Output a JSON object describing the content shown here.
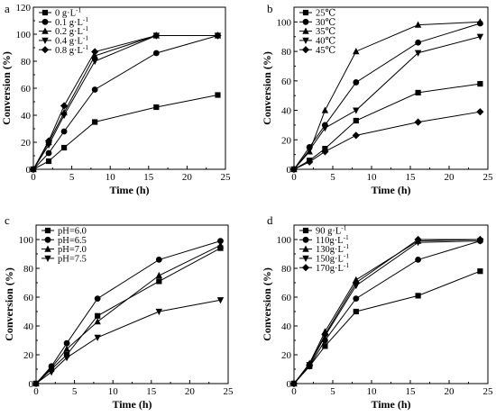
{
  "chart_data": [
    {
      "panel": "a",
      "type": "line",
      "xlabel": "Time (h)",
      "ylabel": "Conversion (%)",
      "xlim": [
        0,
        25
      ],
      "ylim": [
        0,
        120
      ],
      "xticks": [
        0,
        5,
        10,
        15,
        20,
        25
      ],
      "yticks": [
        0,
        20,
        40,
        60,
        80,
        100,
        120
      ],
      "x": [
        0,
        2,
        4,
        8,
        16,
        24
      ],
      "legend_position": "top-left",
      "series": [
        {
          "name": "0 g·L⁻¹",
          "marker": "square",
          "values": [
            0,
            6,
            16,
            35,
            46,
            55
          ]
        },
        {
          "name": "0.1 g·L⁻¹",
          "marker": "circle",
          "values": [
            0,
            12,
            28,
            59,
            86,
            99
          ]
        },
        {
          "name": "0.2 g·L⁻¹",
          "marker": "triangle-up",
          "values": [
            0,
            20,
            42,
            84,
            99,
            99
          ]
        },
        {
          "name": "0.4 g·L⁻¹",
          "marker": "triangle-down",
          "values": [
            0,
            18,
            40,
            80,
            99,
            99
          ]
        },
        {
          "name": "0.8 g·L⁻¹",
          "marker": "diamond",
          "values": [
            0,
            21,
            47,
            87,
            99,
            99
          ]
        }
      ]
    },
    {
      "panel": "b",
      "type": "line",
      "xlabel": "Time (h)",
      "ylabel": "Conversion (%)",
      "xlim": [
        0,
        25
      ],
      "ylim": [
        0,
        110
      ],
      "xticks": [
        0,
        5,
        10,
        15,
        20,
        25
      ],
      "yticks": [
        0,
        20,
        40,
        60,
        80,
        100
      ],
      "x": [
        0,
        2,
        4,
        8,
        16,
        24
      ],
      "legend_position": "top-left",
      "series": [
        {
          "name": "25℃",
          "marker": "square",
          "values": [
            0,
            6,
            14,
            33,
            52,
            58
          ]
        },
        {
          "name": "30℃",
          "marker": "circle",
          "values": [
            0,
            15,
            30,
            59,
            86,
            99
          ]
        },
        {
          "name": "35℃",
          "marker": "triangle-up",
          "values": [
            0,
            12,
            40,
            80,
            98,
            100
          ]
        },
        {
          "name": "40℃",
          "marker": "triangle-down",
          "values": [
            0,
            13,
            28,
            40,
            79,
            90
          ]
        },
        {
          "name": "45℃",
          "marker": "diamond",
          "values": [
            0,
            5,
            12,
            23,
            32,
            39
          ]
        }
      ]
    },
    {
      "panel": "c",
      "type": "line",
      "xlabel": "Time (h)",
      "ylabel": "Conversion (%)",
      "xlim": [
        0,
        25
      ],
      "ylim": [
        0,
        110
      ],
      "xticks": [
        0,
        5,
        10,
        15,
        20,
        25
      ],
      "yticks": [
        0,
        20,
        40,
        60,
        80,
        100
      ],
      "x": [
        0,
        2,
        4,
        8,
        16,
        24
      ],
      "legend_position": "top-left",
      "series": [
        {
          "name": "pH=6.0",
          "marker": "square",
          "values": [
            0,
            10,
            20,
            47,
            71,
            94
          ]
        },
        {
          "name": "pH=6.5",
          "marker": "circle",
          "values": [
            0,
            12,
            28,
            59,
            86,
            99
          ]
        },
        {
          "name": "pH=7.0",
          "marker": "triangle-up",
          "values": [
            0,
            11,
            24,
            43,
            75,
            96
          ]
        },
        {
          "name": "pH=7.5",
          "marker": "triangle-down",
          "values": [
            0,
            8,
            18,
            32,
            50,
            58
          ]
        }
      ]
    },
    {
      "panel": "d",
      "type": "line",
      "xlabel": "Time (h)",
      "ylabel": "Conversion (%)",
      "xlim": [
        0,
        25
      ],
      "ylim": [
        0,
        110
      ],
      "xticks": [
        0,
        5,
        10,
        15,
        20,
        25
      ],
      "yticks": [
        0,
        20,
        40,
        60,
        80,
        100
      ],
      "x": [
        0,
        2,
        4,
        8,
        16,
        24
      ],
      "legend_position": "top-left",
      "series": [
        {
          "name": "90 g·L⁻¹",
          "marker": "square",
          "values": [
            0,
            12,
            26,
            50,
            61,
            78
          ]
        },
        {
          "name": "110g·L⁻¹",
          "marker": "circle",
          "values": [
            0,
            12,
            30,
            59,
            86,
            99
          ]
        },
        {
          "name": "130g·L⁻¹",
          "marker": "triangle-up",
          "values": [
            0,
            14,
            36,
            72,
            99,
            100
          ]
        },
        {
          "name": "150g·L⁻¹",
          "marker": "triangle-down",
          "values": [
            0,
            13,
            33,
            68,
            98,
            99
          ]
        },
        {
          "name": "170g·L⁻¹",
          "marker": "diamond",
          "values": [
            0,
            13,
            34,
            70,
            100,
            100
          ]
        }
      ]
    }
  ]
}
